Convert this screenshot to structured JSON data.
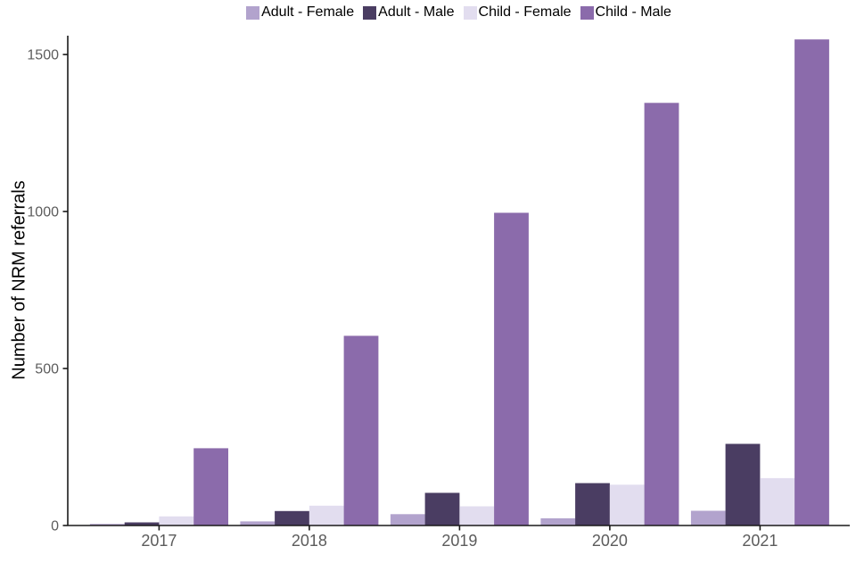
{
  "chart_data": {
    "type": "bar",
    "title": "",
    "xlabel": "",
    "ylabel": "Number of NRM referrals",
    "categories": [
      "2017",
      "2018",
      "2019",
      "2020",
      "2021"
    ],
    "series": [
      {
        "name": "Adult - Female",
        "color": "#b2a3cd",
        "values": [
          5,
          13,
          36,
          23,
          47
        ]
      },
      {
        "name": "Adult - Male",
        "color": "#4a3d62",
        "values": [
          10,
          46,
          104,
          135,
          260
        ]
      },
      {
        "name": "Child - Female",
        "color": "#e2ddef",
        "values": [
          29,
          63,
          61,
          130,
          151
        ]
      },
      {
        "name": "Child - Male",
        "color": "#8b6bab",
        "values": [
          246,
          604,
          996,
          1346,
          1548
        ]
      }
    ],
    "ylim": [
      0,
      1560
    ],
    "yticks": [
      0,
      500,
      1000,
      1500
    ],
    "grid": false,
    "legend_position": "top",
    "colors": {
      "axis": "#1a1a1a",
      "tick_label": "#5c5c5c",
      "background": "#ffffff"
    }
  }
}
